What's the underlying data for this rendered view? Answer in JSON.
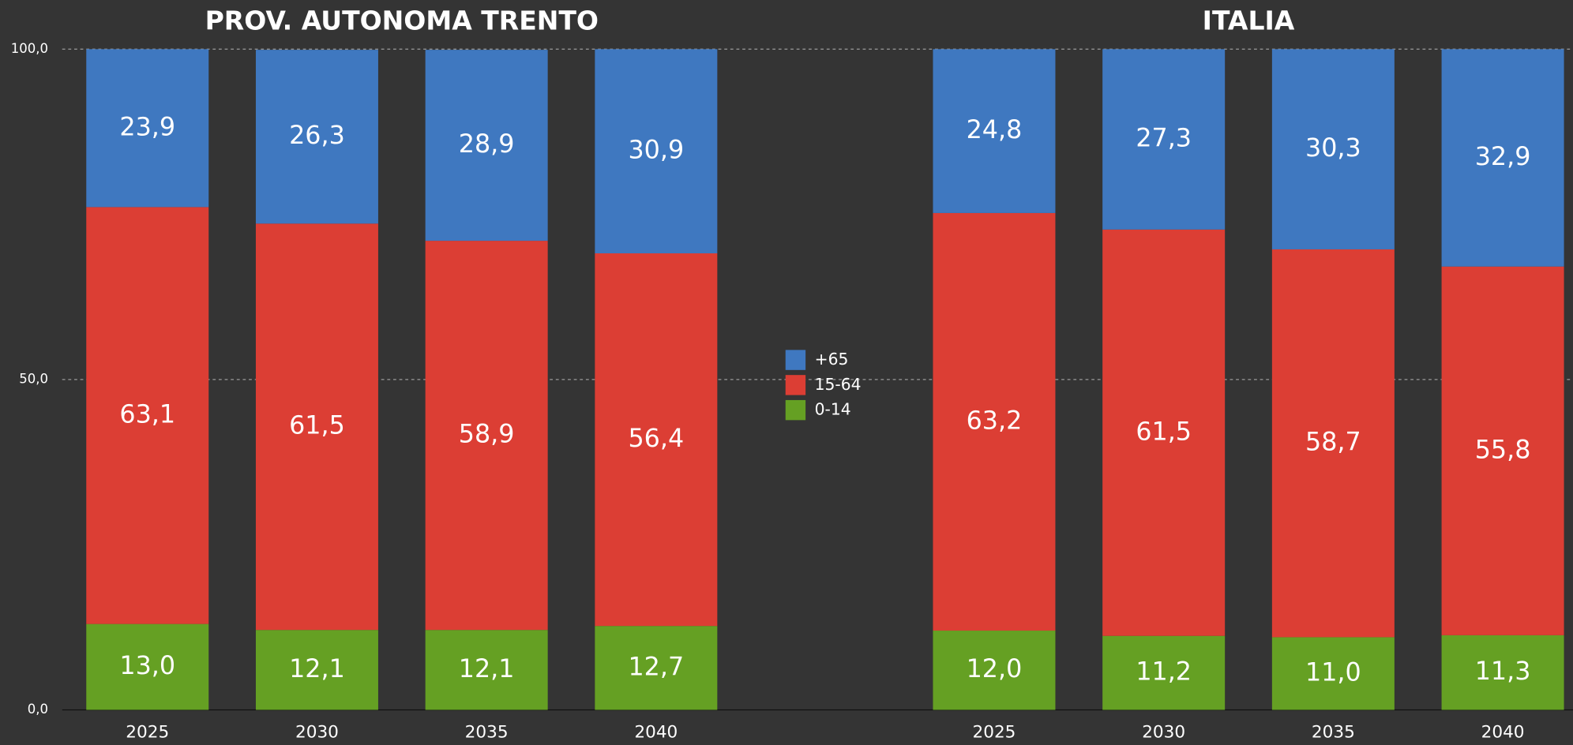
{
  "chart_data": {
    "type": "bar",
    "stacked": true,
    "annotations": [
      "PROV. AUTONOMA TRENTO",
      "ITALIA"
    ],
    "categories": [
      "2025",
      "2030",
      "2035",
      "2040",
      "2025",
      "2030",
      "2035",
      "2040"
    ],
    "series": [
      {
        "name": "+65",
        "color": "#3f78c0",
        "values": [
          23.9,
          26.3,
          28.9,
          30.9,
          24.8,
          27.3,
          30.3,
          32.9
        ],
        "value_labels": [
          "23,9",
          "26,3",
          "28,9",
          "30,9",
          "24,8",
          "27,3",
          "30,3",
          "32,9"
        ]
      },
      {
        "name": "15-64",
        "color": "#dc3e34",
        "values": [
          63.1,
          61.5,
          58.9,
          56.4,
          63.2,
          61.5,
          58.7,
          55.8
        ],
        "value_labels": [
          "63,1",
          "61,5",
          "58,9",
          "56,4",
          "63,2",
          "61,5",
          "58,7",
          "55,8"
        ]
      },
      {
        "name": "0-14",
        "color": "#65a023",
        "values": [
          13.0,
          12.1,
          12.1,
          12.7,
          12.0,
          11.2,
          11.0,
          11.3
        ],
        "value_labels": [
          "13,0",
          "12,1",
          "12,1",
          "12,7",
          "12,0",
          "11,2",
          "11,0",
          "11,3"
        ]
      }
    ],
    "ylim": [
      0,
      100
    ],
    "yticks": [
      {
        "value": 0,
        "label": "0,0"
      },
      {
        "value": 50,
        "label": "50,0"
      },
      {
        "value": 100,
        "label": "100,0"
      }
    ],
    "grid": true
  }
}
